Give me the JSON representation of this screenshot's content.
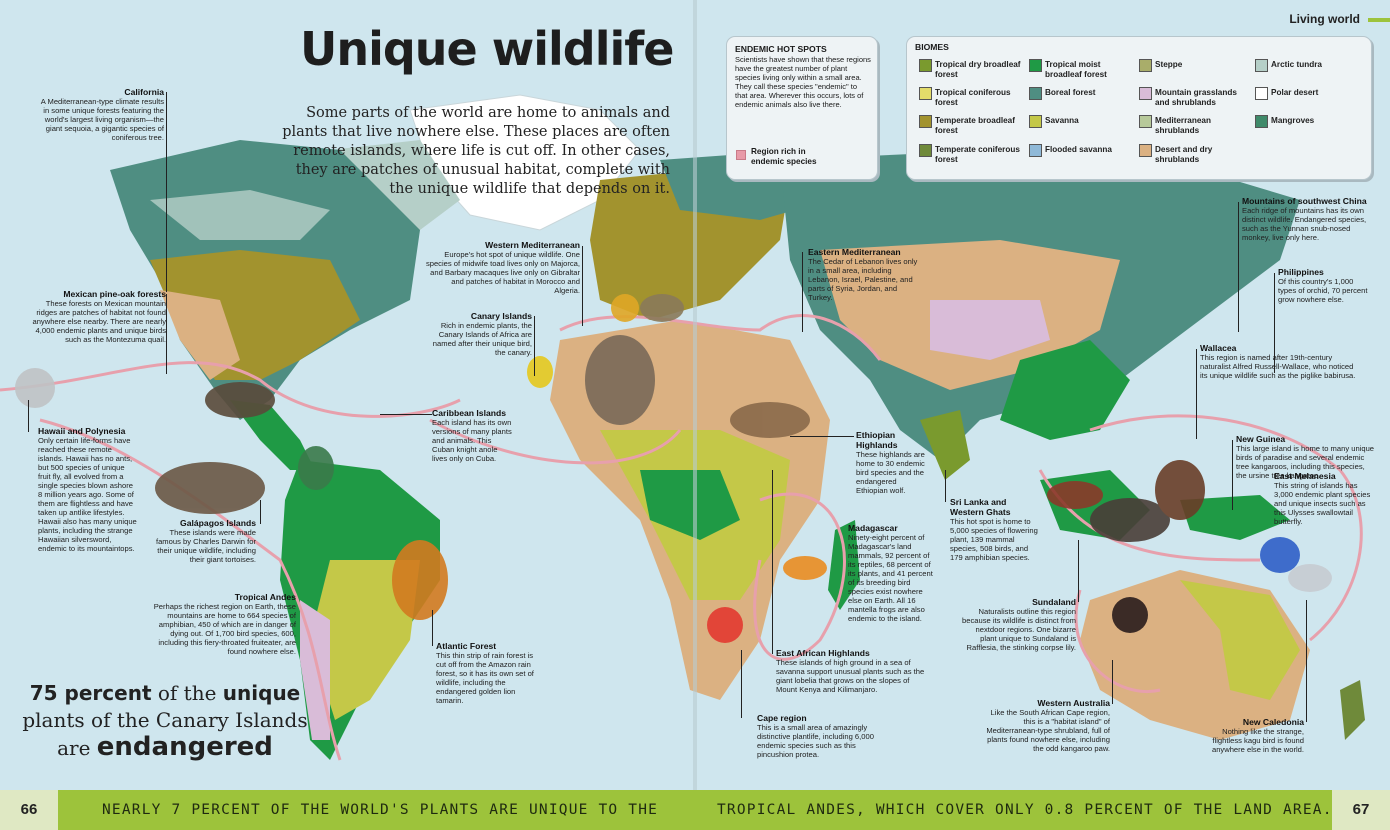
{
  "page": {
    "section": "Living world",
    "title": "Unique wildlife",
    "intro": "Some parts of the world are home to animals and plants that live nowhere else. These places are often remote islands, where life is cut off. In other cases, they are patches of unusual habitat, complete with the unique wildlife that depends on it.",
    "stat": {
      "p1": "75 percent",
      "p2": " of the ",
      "p3": "unique",
      "p4": "plants of the Canary Islands",
      "p5": "are ",
      "p6": "endangered"
    },
    "footer_left": "NEARLY 7 PERCENT OF THE WORLD'S PLANTS ARE UNIQUE TO THE",
    "footer_right": "TROPICAL ANDES, WHICH COVER ONLY 0.8 PERCENT OF THE LAND AREA.",
    "page_left": "66",
    "page_right": "67"
  },
  "hotspots_panel": {
    "heading": "ENDEMIC HOT SPOTS",
    "text": "Scientists have shown that these regions have the greatest number of plant species living only within a small area. They call these species \"endemic\" to that area. Wherever this occurs, lots of endemic animals also live there.",
    "key_label": "Region rich in endemic species",
    "key_color": "#e89aa8"
  },
  "biomes": {
    "heading": "BIOMES",
    "items": [
      {
        "label": "Tropical dry broadleaf forest",
        "color": "#7a9a2e"
      },
      {
        "label": "Tropical coniferous forest",
        "color": "#e3dc6a"
      },
      {
        "label": "Temperate broadleaf forest",
        "color": "#a2932e"
      },
      {
        "label": "Temperate coniferous forest",
        "color": "#6f8a3a"
      },
      {
        "label": "Tropical moist broadleaf forest",
        "color": "#1f9a45"
      },
      {
        "label": "Boreal forest",
        "color": "#4f8e82"
      },
      {
        "label": "Savanna",
        "color": "#c4c848"
      },
      {
        "label": "Flooded savanna",
        "color": "#8fb9d8"
      },
      {
        "label": "Steppe",
        "color": "#a9ad6a"
      },
      {
        "label": "Mountain grasslands and shrublands",
        "color": "#d9bcd8"
      },
      {
        "label": "Mediterranean shrublands",
        "color": "#b7c99a"
      },
      {
        "label": "Desert and dry shrublands",
        "color": "#dbb182"
      },
      {
        "label": "Arctic tundra",
        "color": "#b5cfc8"
      },
      {
        "label": "Polar desert",
        "color": "#ffffff"
      },
      {
        "label": "Mangroves",
        "color": "#3f8a6a"
      }
    ]
  },
  "annotations": {
    "california": {
      "title": "California",
      "text": "A Mediterranean-type climate results in some unique forests featuring the world's largest living organism—the giant sequoia, a gigantic species of coniferous tree."
    },
    "mexican": {
      "title": "Mexican pine-oak forests",
      "text": "These forests on Mexican mountain ridges are patches of habitat not found anywhere else nearby. There are nearly 4,000 endemic plants and unique birds such as the Montezuma quail."
    },
    "hawaii": {
      "title": "Hawaii and Polynesia",
      "text": "Only certain life-forms have reached these remote islands. Hawaii has no ants, but 500 species of unique fruit fly, all evolved from a single species blown ashore 8 million years ago. Some of them are flightless and have taken up antlike lifestyles. Hawaii also has many unique plants, including the strange Hawaiian silversword, endemic to its mountaintops."
    },
    "galapagos": {
      "title": "Galápagos Islands",
      "text": "These islands were made famous by Charles Darwin for their unique wildlife, including their giant tortoises."
    },
    "andes": {
      "title": "Tropical Andes",
      "text": "Perhaps the richest region on Earth, these mountains are home to 664 species of amphibian, 450 of which are in danger of dying out. Of 1,700 bird species, 600, including this fiery-throated fruiteater, are found nowhere else."
    },
    "atlantic": {
      "title": "Atlantic Forest",
      "text": "This thin strip of rain forest is cut off from the Amazon rain forest, so it has its own set of wildlife, including the endangered golden lion tamarin."
    },
    "caribbean": {
      "title": "Caribbean Islands",
      "text": "Each island has its own versions of many plants and animals. This Cuban knight anole lives only on Cuba."
    },
    "canary": {
      "title": "Canary Islands",
      "text": "Rich in endemic plants, the Canary Islands of Africa are named after their unique bird, the canary."
    },
    "westmed": {
      "title": "Western Mediterranean",
      "text": "Europe's hot spot of unique wildlife. One species of midwife toad lives only on Majorca, and Barbary macaques live only on Gibraltar and patches of habitat in Morocco and Algeria."
    },
    "eastmed": {
      "title": "Eastern Mediterranean",
      "text": "The Cedar of Lebanon lives only in a small area, including Lebanon, Israel, Palestine, and parts of Syria, Jordan, and Turkey."
    },
    "ethiopian": {
      "title": "Ethiopian Highlands",
      "text": "These highlands are home to 30 endemic bird species and the endangered Ethiopian wolf."
    },
    "madagascar": {
      "title": "Madagascar",
      "text": "Ninety-eight percent of Madagascar's land mammals, 92 percent of its reptiles, 68 percent of its plants, and 41 percent of its breeding bird species exist nowhere else on Earth. All 16 mantella frogs are also endemic to the island."
    },
    "eastafrica": {
      "title": "East African Highlands",
      "text": "These islands of high ground in a sea of savanna support unusual plants such as the giant lobelia that grows on the slopes of Mount Kenya and Kilimanjaro."
    },
    "cape": {
      "title": "Cape region",
      "text": "This is a small area of amazingly distinctive plantlife, including 6,000 endemic species such as this pincushion protea."
    },
    "srilanka": {
      "title": "Sri Lanka and Western Ghats",
      "text": "This hot spot is home to 5,000 species of flowering plant, 139 mammal species, 508 birds, and 179 amphibian species."
    },
    "sundaland": {
      "title": "Sundaland",
      "text": "Naturalists outline this region because its wildlife is distinct from nextdoor regions. One bizarre plant unique to Sundaland is Rafflesia, the stinking corpse lily."
    },
    "westaus": {
      "title": "Western Australia",
      "text": "Like the South African Cape region, this is a \"habitat island\" of Mediterranean-type shrubland, full of plants found nowhere else, including the odd kangaroo paw."
    },
    "swchina": {
      "title": "Mountains of southwest China",
      "text": "Each ridge of mountains has its own distinct wildlife. Endangered species, such as the Yunnan snub-nosed monkey, live only here."
    },
    "philippines": {
      "title": "Philippines",
      "text": "Of this country's 1,000 types of orchid, 70 percent grow nowhere else."
    },
    "wallacea": {
      "title": "Wallacea",
      "text": "This region is named after 19th-century naturalist Alfred Russell-Wallace, who noticed its unique wildlife such as the piglike babirusa."
    },
    "newguinea": {
      "title": "New Guinea",
      "text": "This large island is home to many unique birds of paradise and several endemic tree kangaroos, including this species, the ursine tree kangaroo."
    },
    "eastmel": {
      "title": "East Melanesia",
      "text": "This string of islands has 3,000 endemic plant species and unique insects such as this Ulysses swallowtail butterfly."
    },
    "newcal": {
      "title": "New Caledonia",
      "text": "Nothing like the strange, flightless kagu bird is found anywhere else in the world."
    }
  },
  "colors": {
    "ocean": "#cfe6ee",
    "footer": "#9dc33b",
    "hotspot_outline": "#e7a0ac"
  }
}
